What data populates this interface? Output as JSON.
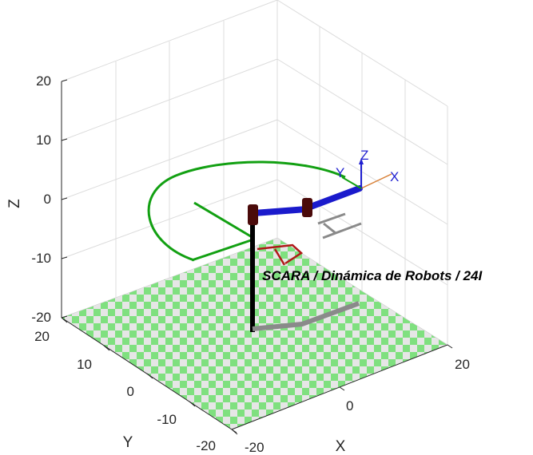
{
  "axes": {
    "x_label": "X",
    "y_label": "Y",
    "z_label": "Z",
    "z_ticks": [
      "20",
      "10",
      "0",
      "-10",
      "-20"
    ],
    "y_ticks": [
      "20",
      "10",
      "0",
      "-10",
      "-20"
    ],
    "x_ticks": [
      "-20",
      "0",
      "20"
    ]
  },
  "robot": {
    "caption": "SCARA / Dinámica de Robots / 24I",
    "tool_frame": {
      "x": "X",
      "y": "Y",
      "z": "Z"
    },
    "workspace_symbol": "A"
  },
  "colors": {
    "floor_light": "#e6e6e6",
    "floor_green": "#7fe07f",
    "link_blue": "#1a1acc",
    "joint_dark": "#4a0a0a",
    "base_black": "#000000",
    "reach_arc": "#12a012",
    "symbol_red": "#b01818",
    "frame_x": "#1f1fd0",
    "frame_y": "#1f1fd0",
    "frame_z": "#1f1fd0"
  }
}
